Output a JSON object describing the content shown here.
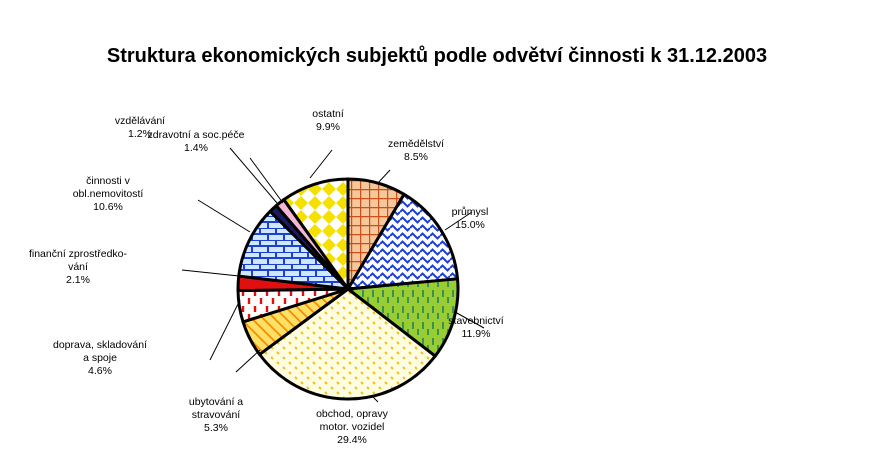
{
  "chart_data": {
    "type": "pie",
    "title": "Struktura ekonomických subjektů podle odvětví činnosti k 31.12.2003",
    "unit": "%",
    "slices": [
      {
        "label": "zemědělství",
        "lines": [
          "zemědělství"
        ],
        "value": 8.5,
        "value_label": "8.5%",
        "color": "#d2691e",
        "fill": "#f6c79a",
        "pattern": "grid"
      },
      {
        "label": "průmysl",
        "lines": [
          "průmysl"
        ],
        "value": 15.0,
        "value_label": "15.0%",
        "color": "#1c3fd6",
        "fill": "#ffffff",
        "pattern": "wave"
      },
      {
        "label": "stavebnictví",
        "lines": [
          "stavebnictví"
        ],
        "value": 11.9,
        "value_label": "11.9%",
        "color": "#2e8b57",
        "fill": "#9acd32",
        "pattern": "dash"
      },
      {
        "label": "obchod, opravy motor. vozidel",
        "lines": [
          "obchod, opravy",
          "motor. vozidel"
        ],
        "value": 29.4,
        "value_label": "29.4%",
        "color": "#f0c020",
        "fill": "#fffde0",
        "pattern": "dots"
      },
      {
        "label": "ubytování a stravování",
        "lines": [
          "ubytování a",
          "stravování"
        ],
        "value": 5.3,
        "value_label": "5.3%",
        "color": "#f28c00",
        "fill": "#ffe066",
        "pattern": "diag"
      },
      {
        "label": "doprava, skladování a spoje",
        "lines": [
          "doprava, skladování",
          "a spoje"
        ],
        "value": 4.6,
        "value_label": "4.6%",
        "color": "#e01010",
        "fill": "#ffffff",
        "pattern": "vdash"
      },
      {
        "label": "finanční zprostředkování",
        "lines": [
          "finanční zprostředko-",
          "vání"
        ],
        "value": 2.1,
        "value_label": "2.1%",
        "color": "#e01010",
        "fill": "#e01010",
        "pattern": "solid"
      },
      {
        "label": "činnosti v obl.nemovitostí",
        "lines": [
          "činnosti v",
          "obl.nemovitostí"
        ],
        "value": 10.6,
        "value_label": "10.6%",
        "color": "#1c3fd6",
        "fill": "#cfe8ff",
        "pattern": "brick"
      },
      {
        "label": "vzdělávání",
        "lines": [
          "vzdělávání"
        ],
        "value": 1.2,
        "value_label": "1.2%",
        "color": "#1a1a60",
        "fill": "#1a1a60",
        "pattern": "solid"
      },
      {
        "label": "zdravotní a soc.péče",
        "lines": [
          "zdravotní a soc.péče"
        ],
        "value": 1.4,
        "value_label": "1.4%",
        "color": "#e88ab8",
        "fill": "#f4b6d2",
        "pattern": "solid"
      },
      {
        "label": "ostatní",
        "lines": [
          "ostatní"
        ],
        "value": 9.9,
        "value_label": "9.9%",
        "color": "#f5e000",
        "fill": "#ffff66",
        "pattern": "diamond"
      }
    ]
  }
}
